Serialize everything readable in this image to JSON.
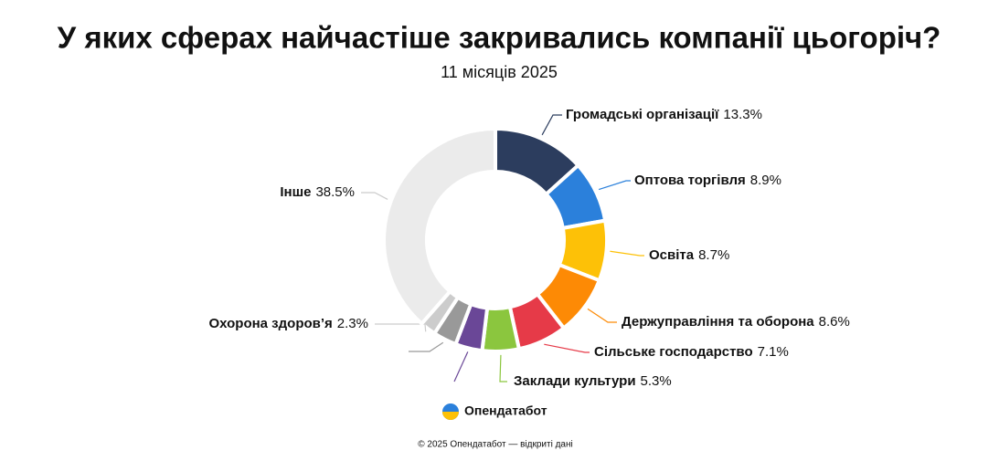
{
  "chart_data": {
    "type": "donut",
    "title": "У яких сферах найчастіше закривались компанії цьогоріч?",
    "subtitle": "11 місяців 2025",
    "categories": [
      "Громадські організації",
      "Оптова торгівля",
      "Освіта",
      "Держуправління та оборона",
      "Сільське господарство",
      "Заклади культури",
      null,
      null,
      "Охорона здоров’я",
      "Інше"
    ],
    "values": [
      13.3,
      8.9,
      8.7,
      8.6,
      7.1,
      5.3,
      3.9,
      3.4,
      2.3,
      38.5
    ],
    "value_labels": [
      "13.3%",
      "8.9%",
      "8.7%",
      "8.6%",
      "7.1%",
      "5.3%",
      null,
      null,
      "2.3%",
      "38.5%"
    ],
    "colors": [
      "#2c3d5e",
      "#2b80db",
      "#fdc107",
      "#fd8a05",
      "#e63a48",
      "#8bc63e",
      "#6a4797",
      "#999999",
      "#cccccc",
      "#ebebeb"
    ]
  },
  "footer": {
    "brand": "Опендатабот",
    "copyright": "© 2025 Опендатабот — відкриті дані"
  }
}
